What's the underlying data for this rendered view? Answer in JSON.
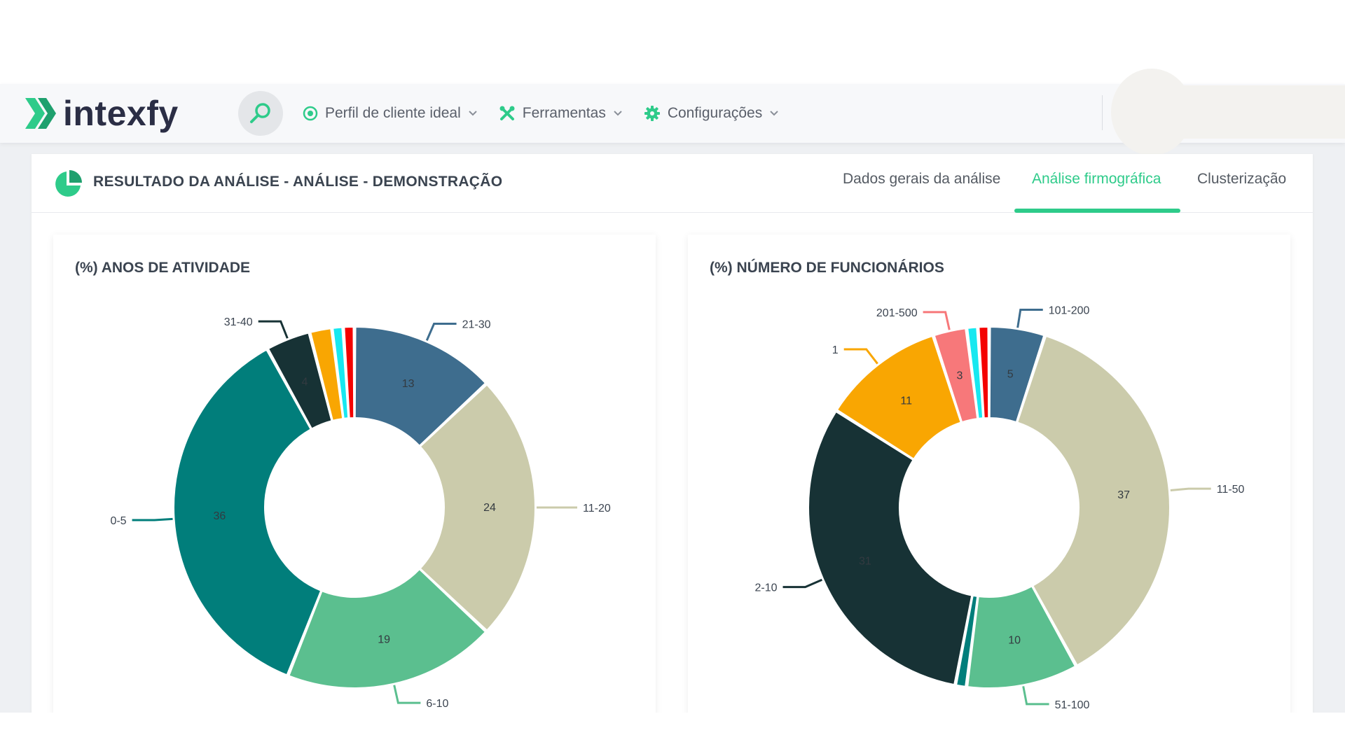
{
  "brand": {
    "name": "intexfy",
    "accent": "#2ecb8a",
    "dark": "#2b2e45"
  },
  "navbar": {
    "search_icon": "search-icon",
    "items": [
      {
        "label": "Perfil de cliente ideal",
        "icon": "target-icon"
      },
      {
        "label": "Ferramentas",
        "icon": "tools-icon"
      },
      {
        "label": "Configurações",
        "icon": "gear-icon"
      }
    ]
  },
  "page": {
    "title": "RESULTADO DA ANÁLISE - ANÁLISE - DEMONSTRAÇÃO",
    "icon": "pie-chart-icon",
    "tabs": [
      {
        "label": "Dados gerais da análise",
        "active": false
      },
      {
        "label": "Análise firmográfica",
        "active": true
      },
      {
        "label": "Clusterização",
        "active": false
      }
    ]
  },
  "chart_data": [
    {
      "type": "pie",
      "title": "(%) ANOS DE ATIVIDADE",
      "slices": [
        {
          "label": "21-30",
          "value": 13,
          "color": "#3e6d8e",
          "value_label": "13"
        },
        {
          "label": "11-20",
          "value": 24,
          "color": "#cbcbab",
          "value_label": "24"
        },
        {
          "label": "6-10",
          "value": 19,
          "color": "#5bbf8f",
          "value_label": "19"
        },
        {
          "label": "0-5",
          "value": 36,
          "color": "#017e7b",
          "value_label": "36"
        },
        {
          "label": "31-40",
          "value": 4,
          "color": "#173235",
          "value_label": "4"
        },
        {
          "label": "",
          "value": 2,
          "color": "#f9a602",
          "value_label": ""
        },
        {
          "label": "",
          "value": 1,
          "color": "#17e8f0",
          "value_label": ""
        },
        {
          "label": "",
          "value": 1,
          "color": "#f40200",
          "value_label": ""
        }
      ]
    },
    {
      "type": "pie",
      "title": "(%) NÚMERO DE FUNCIONÁRIOS",
      "slices": [
        {
          "label": "101-200",
          "value": 5,
          "color": "#3e6d8e",
          "value_label": "5"
        },
        {
          "label": "11-50",
          "value": 37,
          "color": "#cbcbab",
          "value_label": "37"
        },
        {
          "label": "51-100",
          "value": 10,
          "color": "#5bbf8f",
          "value_label": "10"
        },
        {
          "label": "",
          "value": 1,
          "color": "#017e7b",
          "value_label": ""
        },
        {
          "label": "2-10",
          "value": 31,
          "color": "#173235",
          "value_label": "31"
        },
        {
          "label": "1",
          "value": 11,
          "color": "#f9a602",
          "value_label": "11"
        },
        {
          "label": "201-500",
          "value": 3,
          "color": "#f7787a",
          "value_label": "3"
        },
        {
          "label": "",
          "value": 1,
          "color": "#17e8f0",
          "value_label": ""
        },
        {
          "label": "",
          "value": 1,
          "color": "#f40200",
          "value_label": ""
        }
      ]
    }
  ]
}
